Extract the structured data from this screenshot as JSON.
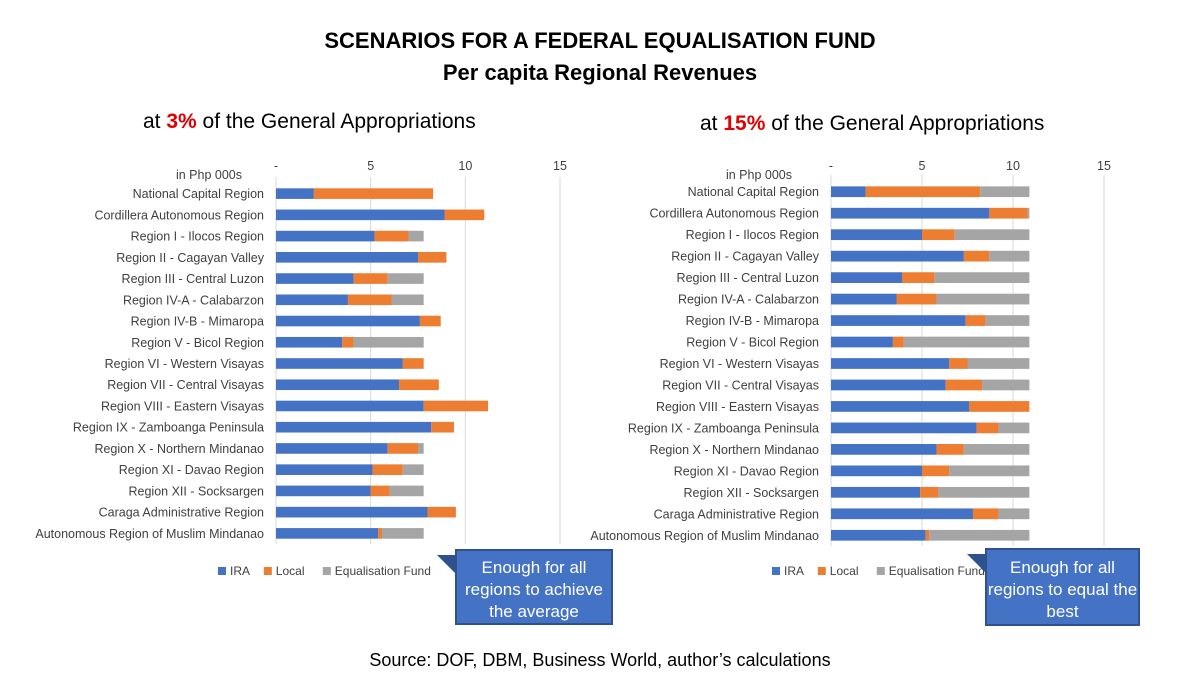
{
  "title": "SCENARIOS FOR A FEDERAL EQUALISATION FUND",
  "subtitle": "Per capita Regional Revenues",
  "source": "Source: DOF, DBM, Business World, author’s calculations",
  "colors": {
    "ira": "#4472c4",
    "local": "#ed7d31",
    "fund": "#a5a5a5",
    "callout": "#4472c4",
    "accent": "#e00000"
  },
  "chart_data": [
    {
      "type": "bar",
      "orientation": "horizontal",
      "stacked": true,
      "heading_prefix": "at ",
      "heading_pct": "3%",
      "heading_suffix": " of the General Appropriations",
      "unit_label": "in Php 000s",
      "xlim": [
        0,
        15
      ],
      "x_ticks": [
        "-",
        "5",
        "10",
        "15"
      ],
      "categories": [
        "National Capital Region",
        "Cordillera Autonomous Region",
        "Region I - Ilocos Region",
        "Region II - Cagayan Valley",
        "Region III - Central Luzon",
        "Region IV-A - Calabarzon",
        "Region IV-B - Mimaropa",
        "Region V - Bicol Region",
        "Region VI - Western Visayas",
        "Region VII - Central Visayas",
        "Region VIII - Eastern Visayas",
        "Region IX - Zamboanga Peninsula",
        "Region X - Northern Mindanao",
        "Region XI - Davao Region",
        "Region XII - Socksargen",
        "Caraga Administrative Region",
        "Autonomous Region of Muslim Mindanao"
      ],
      "series": [
        {
          "name": "IRA",
          "values": [
            2.0,
            8.9,
            5.2,
            7.5,
            4.1,
            3.8,
            7.6,
            3.5,
            6.7,
            6.5,
            7.8,
            8.2,
            5.9,
            5.1,
            5.0,
            8.0,
            5.4
          ]
        },
        {
          "name": "Local",
          "values": [
            6.3,
            2.1,
            1.8,
            1.5,
            1.8,
            2.3,
            1.1,
            0.6,
            1.1,
            2.1,
            3.4,
            1.2,
            1.6,
            1.6,
            1.0,
            1.5,
            0.2
          ]
        },
        {
          "name": "Equalisation Fund",
          "values": [
            0,
            0,
            0.8,
            0,
            1.9,
            1.7,
            0,
            3.7,
            0,
            0,
            0,
            0,
            0.3,
            1.1,
            1.8,
            0,
            2.2
          ]
        }
      ],
      "callout": "Enough for all regions to achieve the average"
    },
    {
      "type": "bar",
      "orientation": "horizontal",
      "stacked": true,
      "heading_prefix": "at ",
      "heading_pct": "15%",
      "heading_suffix": " of the General Appropriations",
      "unit_label": "in Php 000s",
      "xlim": [
        0,
        15
      ],
      "x_ticks": [
        "-",
        "5",
        "10",
        "15"
      ],
      "categories": [
        "National Capital Region",
        "Cordillera Autonomous Region",
        "Region I - Ilocos Region",
        "Region II - Cagayan Valley",
        "Region III - Central Luzon",
        "Region IV-A - Calabarzon",
        "Region IV-B - Mimaropa",
        "Region V - Bicol Region",
        "Region VI - Western Visayas",
        "Region VII - Central Visayas",
        "Region VIII - Eastern Visayas",
        "Region IX - Zamboanga Peninsula",
        "Region X - Northern Mindanao",
        "Region XI - Davao Region",
        "Region XII - Socksargen",
        "Caraga Administrative Region",
        "Autonomous Region of Muslim Mindanao"
      ],
      "series": [
        {
          "name": "IRA",
          "values": [
            1.9,
            8.7,
            5.0,
            7.3,
            3.9,
            3.6,
            7.4,
            3.4,
            6.5,
            6.3,
            7.6,
            8.0,
            5.8,
            5.0,
            4.9,
            7.8,
            5.2
          ]
        },
        {
          "name": "Local",
          "values": [
            6.3,
            2.1,
            1.8,
            1.4,
            1.8,
            2.2,
            1.1,
            0.6,
            1.0,
            2.0,
            3.3,
            1.2,
            1.5,
            1.5,
            1.0,
            1.4,
            0.2
          ]
        },
        {
          "name": "Equalisation Fund",
          "values": [
            2.7,
            0.1,
            4.1,
            2.2,
            5.2,
            5.1,
            2.4,
            6.9,
            3.4,
            2.6,
            0,
            1.7,
            3.6,
            4.4,
            5.0,
            1.7,
            5.5
          ]
        }
      ],
      "callout": "Enough for all regions to equal the best"
    }
  ]
}
